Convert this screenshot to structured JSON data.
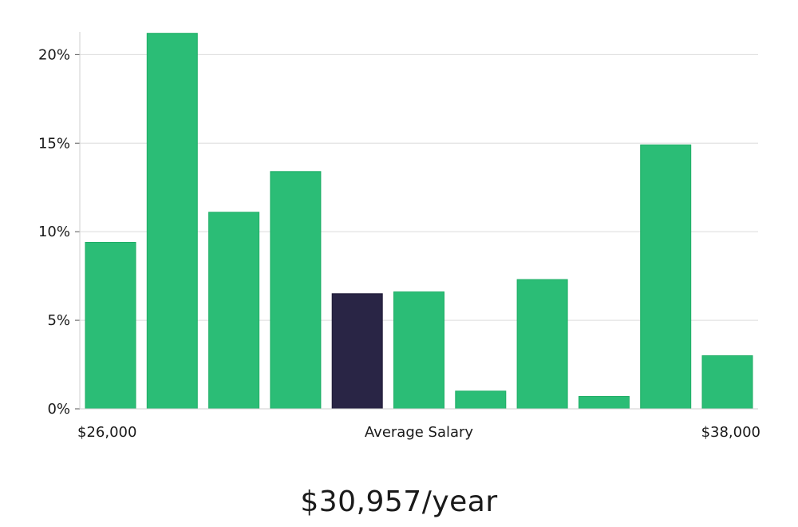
{
  "chart_data": {
    "type": "bar",
    "categories": [
      "1",
      "2",
      "3",
      "4",
      "5",
      "6",
      "7",
      "8",
      "9",
      "10",
      "11"
    ],
    "values": [
      9.4,
      21.2,
      11.1,
      13.4,
      6.5,
      6.6,
      1.0,
      7.3,
      0.7,
      14.9,
      3.0
    ],
    "highlight_index": 4,
    "ylim": [
      0,
      22
    ],
    "y_ticks": [
      0,
      5,
      10,
      15,
      20
    ],
    "y_tick_labels": [
      "0%",
      "5%",
      "10%",
      "15%",
      "20%"
    ],
    "x_min_label": "$26,000",
    "x_max_label": "$38,000",
    "x_center_label": "Average Salary",
    "grid": true,
    "colors": {
      "bar": "#2bbd76",
      "bar_border": "#1fae66",
      "highlight": "#292545",
      "grid": "#dcdcdc",
      "axis": "#cfcfcf"
    }
  },
  "summary": {
    "average_salary_text": "$30,957/year"
  }
}
